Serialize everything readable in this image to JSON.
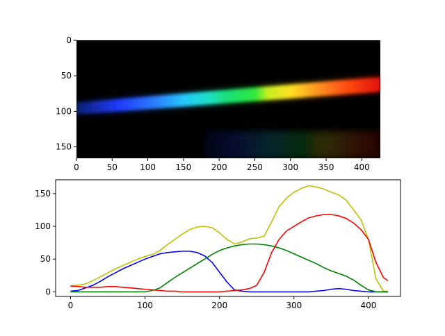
{
  "figure": {
    "image_panel": {
      "description_free": true,
      "x_ticks": [
        0,
        50,
        100,
        150,
        200,
        250,
        300,
        350,
        400
      ],
      "y_ticks": [
        0,
        50,
        100,
        150
      ],
      "xlim": [
        0,
        426
      ],
      "ylim": [
        166,
        0
      ]
    }
  },
  "chart_data": [
    {
      "type": "heatmap",
      "xlim": [
        0,
        426
      ],
      "ylim": [
        166,
        0
      ],
      "x_ticks": [
        "0",
        "50",
        "100",
        "150",
        "200",
        "250",
        "300",
        "350",
        "400"
      ],
      "y_ticks": [
        "0",
        "50",
        "100",
        "150"
      ],
      "band": {
        "left_center_y": 96,
        "right_center_y": 62,
        "left_half_height": 8,
        "right_half_height": 10,
        "colors": [
          {
            "x": 0,
            "color": "#0a1e6e"
          },
          {
            "x": 60,
            "color": "#1f3cff"
          },
          {
            "x": 110,
            "color": "#2a7dff"
          },
          {
            "x": 150,
            "color": "#26c8ff"
          },
          {
            "x": 185,
            "color": "#1de0c8"
          },
          {
            "x": 210,
            "color": "#19e07a"
          },
          {
            "x": 250,
            "color": "#2ee83a"
          },
          {
            "x": 268,
            "color": "#c6ee20"
          },
          {
            "x": 300,
            "color": "#ffe020"
          },
          {
            "x": 340,
            "color": "#ff9020"
          },
          {
            "x": 380,
            "color": "#ff4a10"
          },
          {
            "x": 426,
            "color": "#e21208"
          }
        ]
      }
    },
    {
      "type": "line",
      "xlim": [
        -20,
        443
      ],
      "ylim": [
        -7,
        171
      ],
      "x_ticks": [
        "0",
        "100",
        "200",
        "300",
        "400"
      ],
      "y_ticks": [
        "0",
        "50",
        "100",
        "150"
      ],
      "series": [
        {
          "color": "#bfbf00",
          "x": [
            0,
            10,
            20,
            30,
            40,
            50,
            60,
            70,
            80,
            90,
            100,
            110,
            120,
            130,
            140,
            150,
            160,
            170,
            180,
            190,
            200,
            210,
            220,
            230,
            240,
            250,
            260,
            270,
            280,
            290,
            300,
            310,
            320,
            330,
            340,
            350,
            360,
            370,
            380,
            390,
            400,
            410,
            420,
            426
          ],
          "values": [
            9,
            10,
            12,
            17,
            23,
            29,
            35,
            40,
            45,
            50,
            54,
            57,
            63,
            72,
            80,
            88,
            95,
            99,
            100,
            98,
            90,
            80,
            73,
            76,
            81,
            82,
            85,
            107,
            130,
            143,
            152,
            158,
            162,
            160,
            157,
            152,
            148,
            140,
            125,
            110,
            80,
            20,
            1,
            1
          ]
        },
        {
          "color": "#0000ff",
          "x": [
            0,
            10,
            20,
            30,
            40,
            50,
            60,
            70,
            80,
            90,
            100,
            110,
            120,
            130,
            140,
            150,
            160,
            170,
            180,
            190,
            200,
            210,
            220,
            230,
            240,
            250,
            260,
            270,
            280,
            290,
            300,
            310,
            320,
            330,
            340,
            350,
            360,
            370,
            380,
            390,
            400,
            410,
            420,
            426
          ],
          "values": [
            1,
            2,
            6,
            10,
            16,
            23,
            29,
            35,
            40,
            45,
            50,
            54,
            58,
            60,
            61,
            62,
            62,
            60,
            55,
            45,
            30,
            15,
            3,
            1,
            0,
            0,
            0,
            0,
            0,
            0,
            0,
            0,
            0,
            1,
            2,
            4,
            5,
            4,
            2,
            1,
            0,
            0,
            0,
            0
          ]
        },
        {
          "color": "#008000",
          "x": [
            0,
            10,
            20,
            30,
            40,
            50,
            60,
            70,
            80,
            90,
            100,
            110,
            120,
            130,
            140,
            150,
            160,
            170,
            180,
            190,
            200,
            210,
            220,
            230,
            240,
            250,
            260,
            270,
            280,
            290,
            300,
            310,
            320,
            330,
            340,
            350,
            360,
            370,
            380,
            390,
            400,
            410,
            420,
            426
          ],
          "values": [
            0,
            0,
            0,
            0,
            0,
            0,
            0,
            0,
            0,
            0,
            0,
            2,
            6,
            14,
            22,
            29,
            36,
            43,
            50,
            57,
            63,
            67,
            70,
            72,
            73,
            73,
            72,
            70,
            67,
            63,
            58,
            53,
            48,
            43,
            37,
            32,
            28,
            24,
            18,
            10,
            3,
            0,
            0,
            0
          ]
        },
        {
          "color": "#ff0000",
          "x": [
            0,
            10,
            20,
            30,
            40,
            50,
            60,
            70,
            80,
            90,
            100,
            110,
            120,
            130,
            140,
            150,
            160,
            170,
            180,
            190,
            200,
            210,
            220,
            230,
            240,
            250,
            260,
            270,
            280,
            290,
            300,
            310,
            320,
            330,
            340,
            350,
            360,
            370,
            380,
            390,
            400,
            410,
            420,
            426
          ],
          "values": [
            9,
            8,
            7,
            7,
            7,
            8,
            8,
            7,
            6,
            5,
            4,
            3,
            2,
            1,
            1,
            0,
            0,
            0,
            0,
            0,
            0,
            1,
            2,
            3,
            5,
            10,
            30,
            60,
            80,
            93,
            100,
            107,
            113,
            116,
            118,
            118,
            116,
            112,
            105,
            95,
            80,
            45,
            22,
            17
          ]
        }
      ]
    }
  ]
}
